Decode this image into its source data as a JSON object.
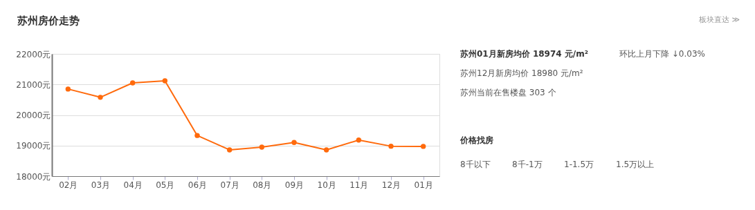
{
  "chart_data": {
    "type": "line",
    "title": "苏州房价走势",
    "categories": [
      "02月",
      "03月",
      "04月",
      "05月",
      "06月",
      "07月",
      "08月",
      "09月",
      "10月",
      "11月",
      "12月",
      "01月"
    ],
    "series": [
      {
        "color": "#ff6a0c",
        "values": [
          20850,
          20580,
          21050,
          21120,
          19330,
          18860,
          18950,
          19100,
          18860,
          19180,
          18980,
          18974
        ]
      }
    ],
    "ylim": [
      18000,
      22000
    ],
    "yticks": [
      {
        "value": 18000,
        "label": "18000元"
      },
      {
        "value": 19000,
        "label": "19000元"
      },
      {
        "value": 20000,
        "label": "20000元"
      },
      {
        "value": 21000,
        "label": "21000元"
      },
      {
        "value": 22000,
        "label": "22000元"
      }
    ],
    "grid": "y",
    "marker": "circle",
    "line_style": "solid",
    "annotations": [
      "板块直达 ≫",
      "苏州01月新房均价 18974 元/m²",
      "环比上月下降 ↓0.03%",
      "苏州12月新房均价 18980 元/m²",
      "苏州当前在售楼盘 303 个",
      "价格找房",
      "8千以下",
      "8千-1万",
      "1-1.5万",
      "1.5万以上"
    ]
  }
}
